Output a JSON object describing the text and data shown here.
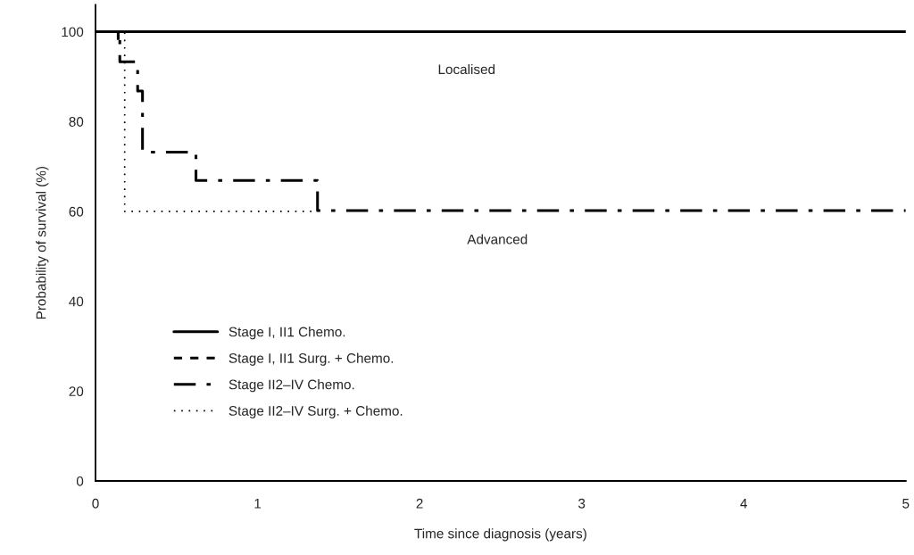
{
  "chart_data": {
    "type": "step",
    "xlabel": "Time since diagnosis (years)",
    "ylabel": "Probability of survival (%)",
    "xlim": [
      0,
      5
    ],
    "xticks": [
      0,
      1,
      2,
      3,
      4,
      5
    ],
    "ylim": [
      0,
      106
    ],
    "yticks": [
      0,
      20,
      40,
      60,
      80,
      100
    ],
    "grid": false,
    "legend": "bottom left",
    "series": [
      {
        "name": "Stage I, II1 Chemo.",
        "color": "#000000",
        "line_style": "solid",
        "x": [
          0,
          5
        ],
        "values": [
          100,
          100
        ]
      },
      {
        "name": "Stage I, II1 Surg. + Chemo.",
        "color": "#000000",
        "line_style": "dashed",
        "type": "line",
        "x": [
          0.14,
          0.14
        ],
        "values": [
          100,
          97
        ]
      },
      {
        "name": "Stage II2–IV Chemo.",
        "color": "#000000",
        "line_style": "dashdot",
        "x": [
          0,
          0.15,
          0.26,
          0.29,
          0.62,
          1.37,
          5
        ],
        "values": [
          100,
          93.3,
          86.8,
          73.2,
          66.9,
          60.2,
          60.2
        ]
      },
      {
        "name": "Stage II2–IV Surg. + Chemo.",
        "color": "#000000",
        "line_style": "dotted",
        "x": [
          0,
          0.18,
          1.37
        ],
        "values": [
          100,
          60,
          60
        ]
      }
    ],
    "annotations": [
      "Localised",
      "Advanced"
    ]
  }
}
